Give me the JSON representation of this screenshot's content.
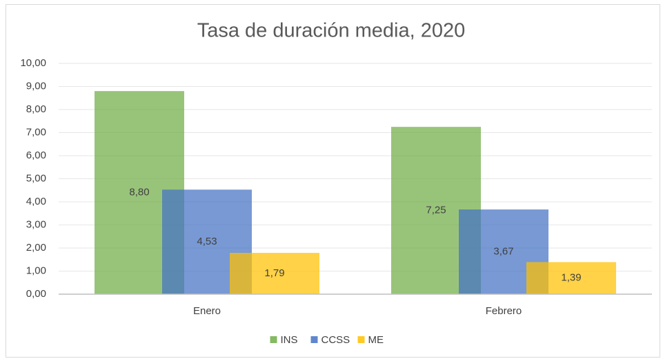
{
  "chart_data": {
    "type": "bar",
    "title": "Tasa de duración media, 2020",
    "categories": [
      "Enero",
      "Febrero"
    ],
    "series": [
      {
        "name": "INS",
        "color": "#70ad47",
        "values": [
          8.8,
          7.25
        ],
        "value_labels": [
          "8,80",
          "7,25"
        ]
      },
      {
        "name": "CCSS",
        "color": "#4472c4",
        "values": [
          4.53,
          3.67
        ],
        "value_labels": [
          "4,53",
          "3,67"
        ]
      },
      {
        "name": "ME",
        "color": "#ffc000",
        "values": [
          1.79,
          1.39
        ],
        "value_labels": [
          "1,79",
          "1,39"
        ]
      }
    ],
    "ylim": [
      0,
      10
    ],
    "yticks": [
      {
        "value": 0,
        "label": "0,00"
      },
      {
        "value": 1,
        "label": "1,00"
      },
      {
        "value": 2,
        "label": "2,00"
      },
      {
        "value": 3,
        "label": "3,00"
      },
      {
        "value": 4,
        "label": "4,00"
      },
      {
        "value": 5,
        "label": "5,00"
      },
      {
        "value": 6,
        "label": "6,00"
      },
      {
        "value": 7,
        "label": "7,00"
      },
      {
        "value": 8,
        "label": "8,00"
      },
      {
        "value": 9,
        "label": "9,00"
      },
      {
        "value": 10,
        "label": "10,00"
      }
    ],
    "grid": true,
    "legend": "bottom"
  }
}
